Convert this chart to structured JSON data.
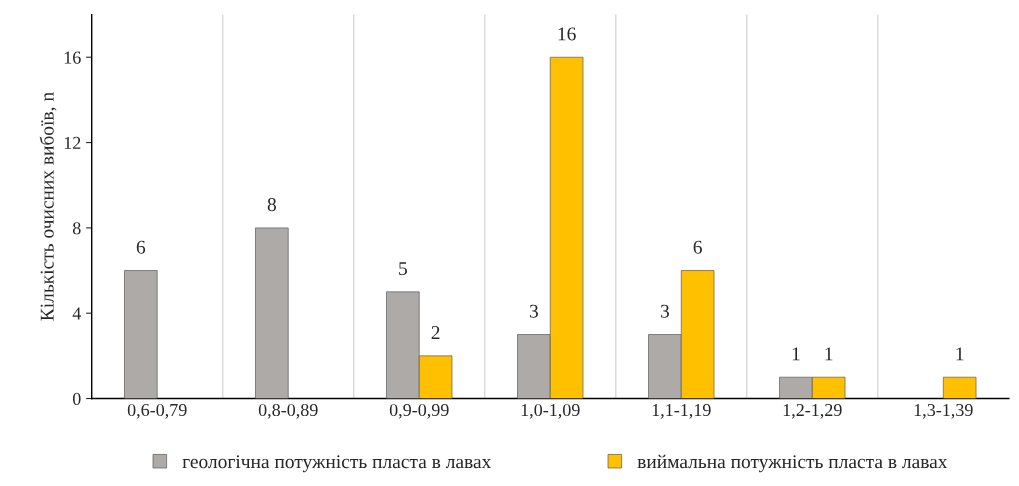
{
  "chart_data": {
    "type": "bar",
    "categories": [
      "0,6-0,79",
      "0,8-0,89",
      "0,9-0,99",
      "1,0-1,09",
      "1,1-1,19",
      "1,2-1,29",
      "1,3-1,39"
    ],
    "series": [
      {
        "name": "геологічна потужність пласта в лавах",
        "color": "#aeaaa8",
        "values": [
          6,
          8,
          5,
          3,
          3,
          1,
          null
        ]
      },
      {
        "name": "виймальна потужність пласта в лавах",
        "color": "#ffc000",
        "values": [
          null,
          null,
          2,
          16,
          6,
          1,
          1
        ]
      }
    ],
    "ylabel": "Кількість очисних вибоїв, n",
    "ylim": [
      0,
      18
    ],
    "yticks": [
      0,
      4,
      8,
      12,
      16
    ],
    "grid": "x",
    "legend": "bottom",
    "data_labels": true
  }
}
